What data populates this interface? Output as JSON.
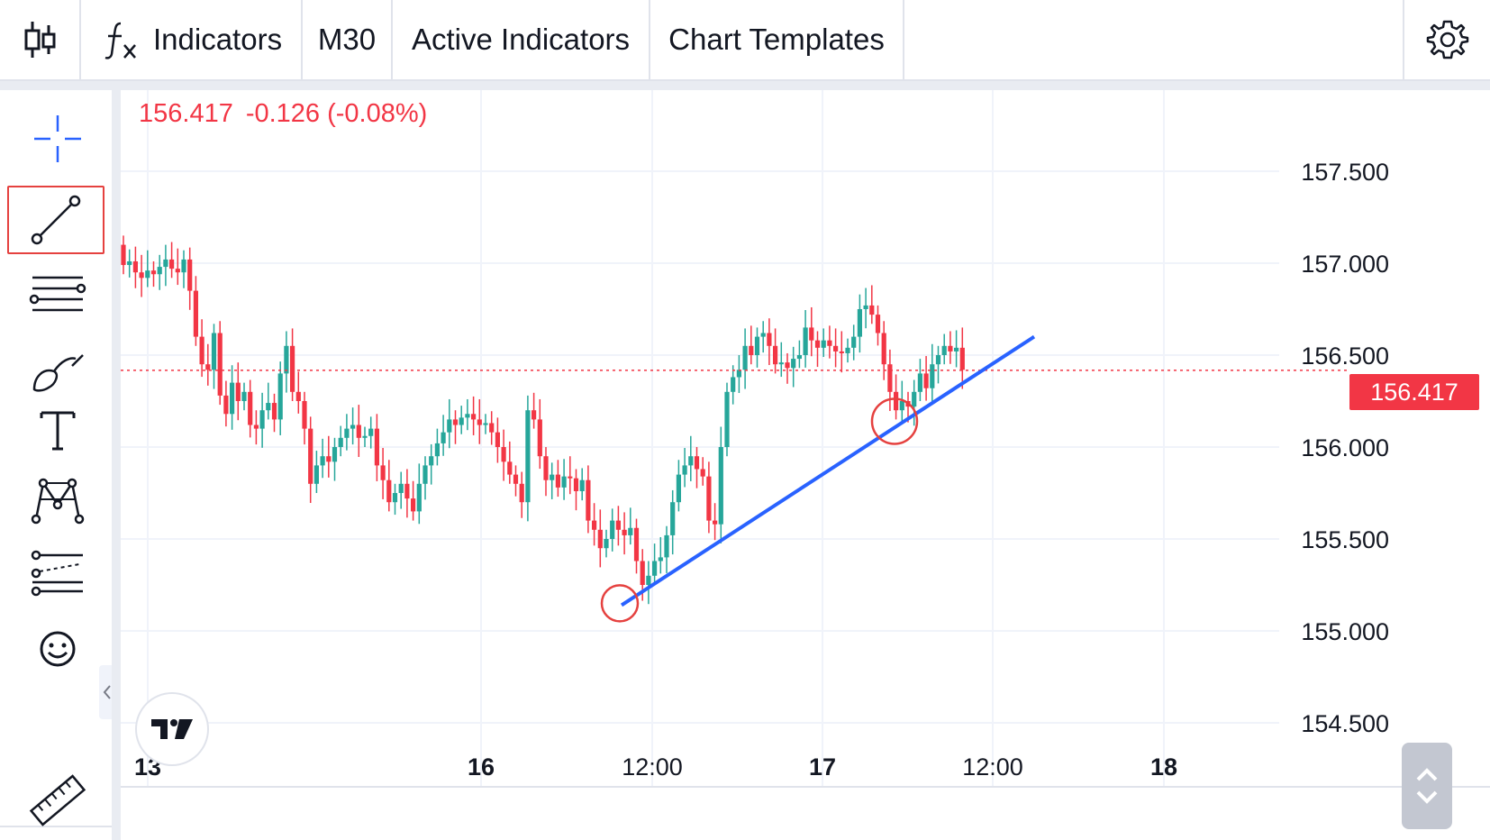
{
  "toolbar": {
    "indicators_label": "Indicators",
    "timeframe_label": "M30",
    "active_indicators_label": "Active Indicators",
    "chart_templates_label": "Chart Templates"
  },
  "left_toolbar": {
    "tools": [
      "crosshair-icon",
      "trend-line-icon",
      "horizontal-lines-icon",
      "brush-icon",
      "text-icon",
      "pattern-icon",
      "forecast-icon",
      "emoji-icon",
      "ruler-icon"
    ],
    "active_tool": "trend-line-icon"
  },
  "legend": {
    "price": "156.417",
    "change": "-0.126",
    "change_pct": "(-0.08%)"
  },
  "current_price_tag": "156.417",
  "colors": {
    "up": "#26a69a",
    "down": "#f23645",
    "trendline": "#2962ff",
    "highlight": "#e5413f",
    "grid": "#f0f3fa"
  },
  "chart_data": {
    "type": "candlestick",
    "symbol_timeframe": "M30",
    "y_ticks": [
      "157.500",
      "157.000",
      "156.500",
      "156.000",
      "155.500",
      "155.000",
      "154.500"
    ],
    "y_range": [
      154.45,
      157.85
    ],
    "x_ticks": [
      {
        "label": "13",
        "bold": true
      },
      {
        "label": "16",
        "bold": true
      },
      {
        "label": "12:00",
        "bold": false
      },
      {
        "label": "17",
        "bold": true
      },
      {
        "label": "12:00",
        "bold": false
      },
      {
        "label": "18",
        "bold": true
      }
    ],
    "last_price": 156.417,
    "closes": [
      156.99,
      157.01,
      156.95,
      156.92,
      156.96,
      156.94,
      156.98,
      157.02,
      156.97,
      156.95,
      157.02,
      156.85,
      156.6,
      156.45,
      156.42,
      156.62,
      156.28,
      156.18,
      156.35,
      156.25,
      156.3,
      156.12,
      156.1,
      156.2,
      156.24,
      156.15,
      156.4,
      156.55,
      156.3,
      156.25,
      156.1,
      155.8,
      155.9,
      155.95,
      155.92,
      156.0,
      156.05,
      156.1,
      156.12,
      156.05,
      156.06,
      156.1,
      155.9,
      155.82,
      155.7,
      155.75,
      155.8,
      155.72,
      155.65,
      155.8,
      155.9,
      155.95,
      156.02,
      156.08,
      156.15,
      156.12,
      156.16,
      156.18,
      156.15,
      156.12,
      156.13,
      156.08,
      156.0,
      155.92,
      155.85,
      155.8,
      155.7,
      156.2,
      156.15,
      155.95,
      155.82,
      155.85,
      155.78,
      155.84,
      155.83,
      155.76,
      155.82,
      155.6,
      155.55,
      155.45,
      155.5,
      155.6,
      155.55,
      155.52,
      155.56,
      155.38,
      155.25,
      155.3,
      155.38,
      155.4,
      155.52,
      155.7,
      155.85,
      155.9,
      155.95,
      155.88,
      155.84,
      155.6,
      155.58,
      156.0,
      156.3,
      156.38,
      156.42,
      156.55,
      156.5,
      156.6,
      156.62,
      156.55,
      156.45,
      156.46,
      156.43,
      156.48,
      156.5,
      156.65,
      156.58,
      156.54,
      156.58,
      156.55,
      156.52,
      156.51,
      156.54,
      156.6,
      156.75,
      156.77,
      156.72,
      156.62,
      156.45,
      156.3,
      156.2,
      156.25,
      156.22,
      156.3,
      156.4,
      156.32,
      156.45,
      156.5,
      156.55,
      156.52,
      156.54,
      156.42
    ]
  }
}
